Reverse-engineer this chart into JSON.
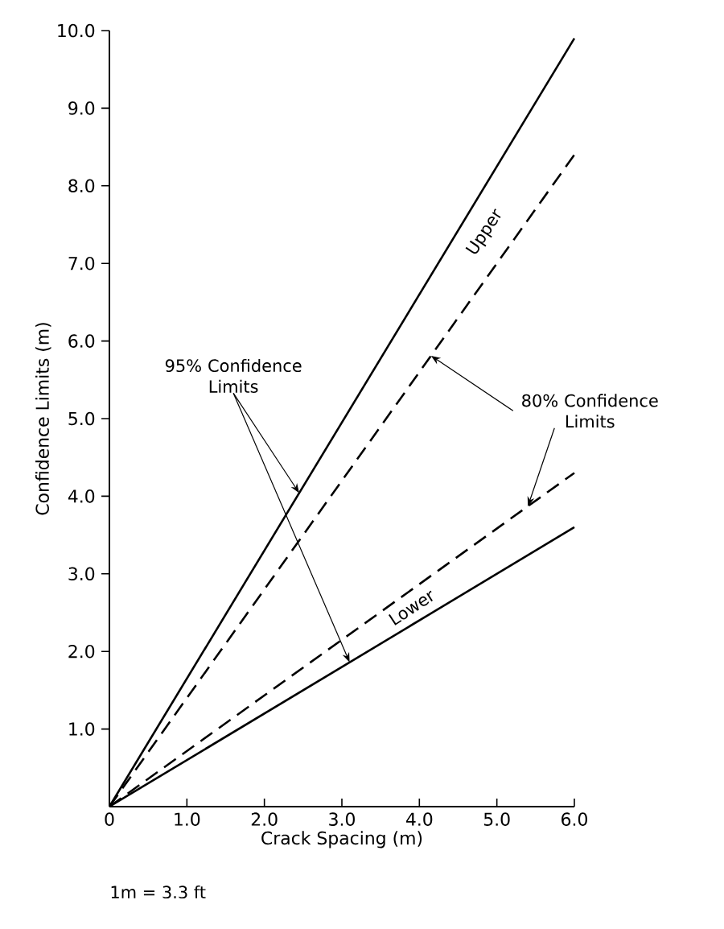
{
  "chart_data": {
    "type": "line",
    "xlabel": "Crack Spacing (m)",
    "ylabel": "Confidence Limits (m)",
    "x": [
      0,
      6.0
    ],
    "series": [
      {
        "color": "#000000",
        "line_style": "solid",
        "values": [
          0,
          9.9
        ]
      },
      {
        "color": "#000000",
        "line_style": "dashed",
        "values": [
          0,
          8.4
        ]
      },
      {
        "color": "#000000",
        "line_style": "dashed",
        "values": [
          0,
          4.3
        ]
      },
      {
        "color": "#000000",
        "line_style": "solid",
        "values": [
          0,
          3.6
        ]
      }
    ],
    "xlim": [
      0,
      6.0
    ],
    "ylim": [
      0,
      10.0
    ],
    "xticks": [
      {
        "value": 0,
        "label": "0"
      },
      {
        "value": 1,
        "label": "1.0"
      },
      {
        "value": 2,
        "label": "2.0"
      },
      {
        "value": 3,
        "label": "3.0"
      },
      {
        "value": 4,
        "label": "4.0"
      },
      {
        "value": 5,
        "label": "5.0"
      },
      {
        "value": 6,
        "label": "6.0"
      }
    ],
    "yticks": [
      {
        "value": 1,
        "label": "1.0"
      },
      {
        "value": 2,
        "label": "2.0"
      },
      {
        "value": 3,
        "label": "3.0"
      },
      {
        "value": 4,
        "label": "4.0"
      },
      {
        "value": 5,
        "label": "5.0"
      },
      {
        "value": 6,
        "label": "6.0"
      },
      {
        "value": 7,
        "label": "7.0"
      },
      {
        "value": 8,
        "label": "8.0"
      },
      {
        "value": 9,
        "label": "9.0"
      },
      {
        "value": 10,
        "label": "10.0"
      }
    ],
    "annotations": [
      "Upper",
      "Lower",
      {
        "text": "95% Confidence Limits",
        "x": 2.45,
        "y": 4.04
      },
      {
        "text": "80% Confidence Limits",
        "x": 4.15,
        "y": 5.81
      },
      "1m = 3.3 ft"
    ],
    "grid": false,
    "marker": "none"
  }
}
